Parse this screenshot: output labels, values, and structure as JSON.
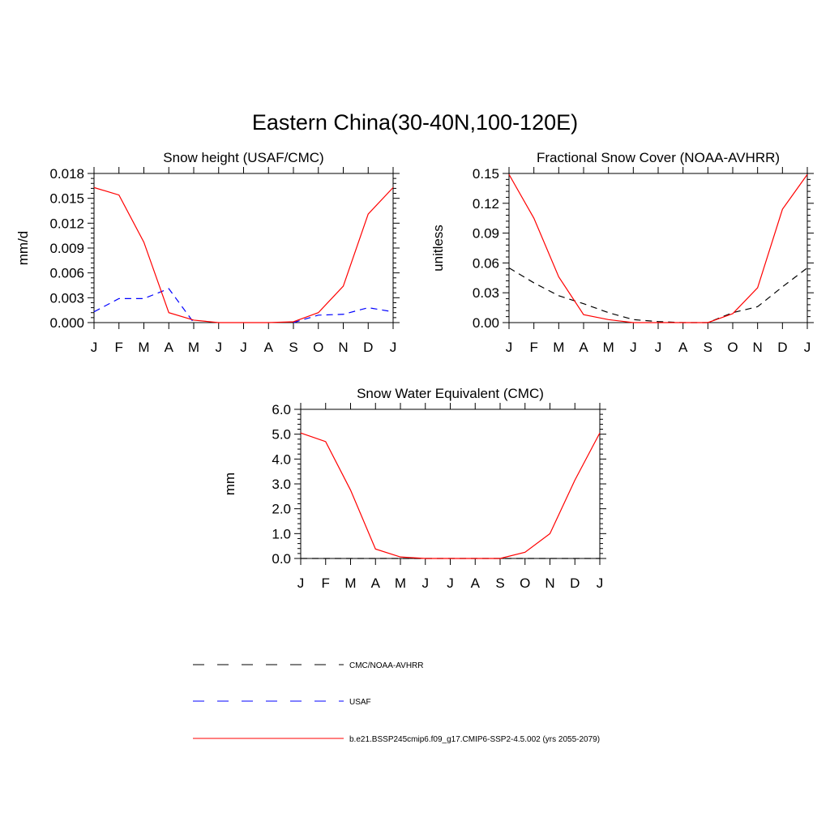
{
  "figure": {
    "title": "Eastern China(30-40N,100-120E)"
  },
  "chart_data": [
    {
      "type": "line",
      "title": "Snow height (USAF/CMC)",
      "xlabel": "",
      "ylabel": "mm/d",
      "categories": [
        "J",
        "F",
        "M",
        "A",
        "M",
        "J",
        "J",
        "A",
        "S",
        "O",
        "N",
        "D",
        "J"
      ],
      "ylim": [
        0,
        0.018
      ],
      "yticks": [
        "0.000",
        "0.003",
        "0.006",
        "0.009",
        "0.012",
        "0.015",
        "0.018"
      ],
      "series": [
        {
          "name": "USAF",
          "style": "dashed",
          "color": "#0000ff",
          "values": [
            0.0013,
            0.0029,
            0.0029,
            0.0041,
            0.0,
            null,
            null,
            null,
            0.0,
            0.0009,
            0.001,
            0.0018,
            0.0013
          ]
        },
        {
          "name": "b.e21.BSSP245cmip6.f09_g17.CMIP6-SSP2-4.5.002 (yrs 2055-2079)",
          "style": "solid",
          "color": "#ff0000",
          "values": [
            0.0163,
            0.0154,
            0.0097,
            0.0012,
            0.0003,
            0.0,
            0.0,
            0.0,
            0.0001,
            0.0012,
            0.0044,
            0.0131,
            0.0163
          ]
        }
      ]
    },
    {
      "type": "line",
      "title": "Fractional Snow Cover (NOAA-AVHRR)",
      "xlabel": "",
      "ylabel": "unitless",
      "categories": [
        "J",
        "F",
        "M",
        "A",
        "M",
        "J",
        "J",
        "A",
        "S",
        "O",
        "N",
        "D",
        "J"
      ],
      "ylim": [
        0,
        0.15
      ],
      "yticks": [
        "0.00",
        "0.03",
        "0.06",
        "0.09",
        "0.12",
        "0.15"
      ],
      "series": [
        {
          "name": "CMC/NOAA-AVHRR",
          "style": "dashed",
          "color": "#000000",
          "values": [
            0.055,
            0.04,
            0.027,
            0.019,
            0.01,
            0.003,
            0.001,
            0.0,
            0.0,
            0.01,
            0.016,
            0.036,
            0.055
          ]
        },
        {
          "name": "b.e21.BSSP245cmip6.f09_g17.CMIP6-SSP2-4.5.002 (yrs 2055-2079)",
          "style": "solid",
          "color": "#ff0000",
          "values": [
            0.149,
            0.105,
            0.046,
            0.008,
            0.003,
            0.0,
            0.0,
            0.0,
            0.0,
            0.009,
            0.035,
            0.114,
            0.149
          ]
        }
      ]
    },
    {
      "type": "line",
      "title": "Snow Water Equivalent (CMC)",
      "xlabel": "",
      "ylabel": "mm",
      "categories": [
        "J",
        "F",
        "M",
        "A",
        "M",
        "J",
        "J",
        "A",
        "S",
        "O",
        "N",
        "D",
        "J"
      ],
      "ylim": [
        0,
        6.0
      ],
      "yticks": [
        "0.0",
        "1.0",
        "2.0",
        "3.0",
        "4.0",
        "5.0",
        "6.0"
      ],
      "series": [
        {
          "name": "CMC/NOAA-AVHRR",
          "style": "dashed",
          "color": "#000000",
          "values": [
            0.0,
            0.0,
            0.0,
            0.0,
            0.0,
            0.0,
            0.0,
            0.0,
            0.0,
            0.0,
            0.0,
            0.0,
            0.0
          ]
        },
        {
          "name": "b.e21.BSSP245cmip6.f09_g17.CMIP6-SSP2-4.5.002 (yrs 2055-2079)",
          "style": "solid",
          "color": "#ff0000",
          "values": [
            5.05,
            4.7,
            2.75,
            0.38,
            0.06,
            0.0,
            0.0,
            0.0,
            0.0,
            0.25,
            1.0,
            3.15,
            5.05
          ]
        }
      ]
    }
  ],
  "legend": {
    "items": [
      {
        "label": "CMC/NOAA-AVHRR",
        "style": "dashed",
        "color": "#000000"
      },
      {
        "label": "USAF",
        "style": "dashed",
        "color": "#0000ff"
      },
      {
        "label": "b.e21.BSSP245cmip6.f09_g17.CMIP6-SSP2-4.5.002 (yrs 2055-2079)",
        "style": "solid",
        "color": "#ff0000"
      }
    ]
  }
}
